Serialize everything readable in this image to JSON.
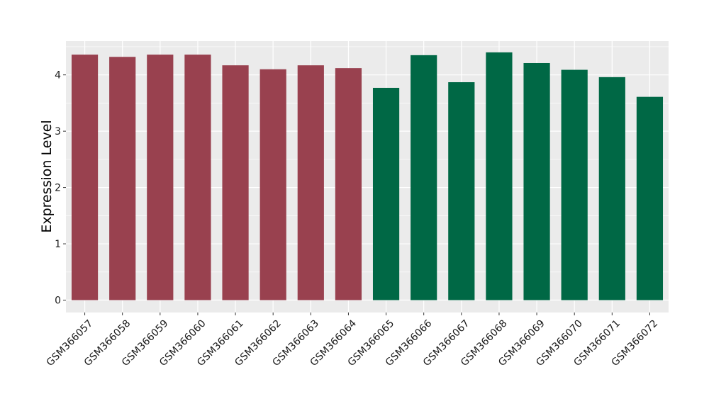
{
  "chart_data": {
    "type": "bar",
    "title": "",
    "xlabel": "",
    "ylabel": "Expression Level",
    "ylim": [
      -0.22,
      4.6
    ],
    "yticks": [
      0,
      1,
      2,
      3,
      4
    ],
    "grid": true,
    "legend": "none",
    "categories": [
      "GSM366057",
      "GSM366058",
      "GSM366059",
      "GSM366060",
      "GSM366061",
      "GSM366062",
      "GSM366063",
      "GSM366064",
      "GSM366065",
      "GSM366066",
      "GSM366067",
      "GSM366068",
      "GSM366069",
      "GSM366070",
      "GSM366071",
      "GSM366072"
    ],
    "values": [
      4.36,
      4.32,
      4.36,
      4.36,
      4.17,
      4.1,
      4.17,
      4.12,
      3.77,
      4.35,
      3.87,
      4.4,
      4.21,
      4.09,
      3.96,
      3.61
    ],
    "group_colors": [
      "#99414f",
      "#99414f",
      "#99414f",
      "#99414f",
      "#99414f",
      "#99414f",
      "#99414f",
      "#99414f",
      "#006845",
      "#006845",
      "#006845",
      "#006845",
      "#006845",
      "#006845",
      "#006845",
      "#006845"
    ],
    "panel_background": "#ebebeb",
    "grid_color": "#ffffff"
  }
}
